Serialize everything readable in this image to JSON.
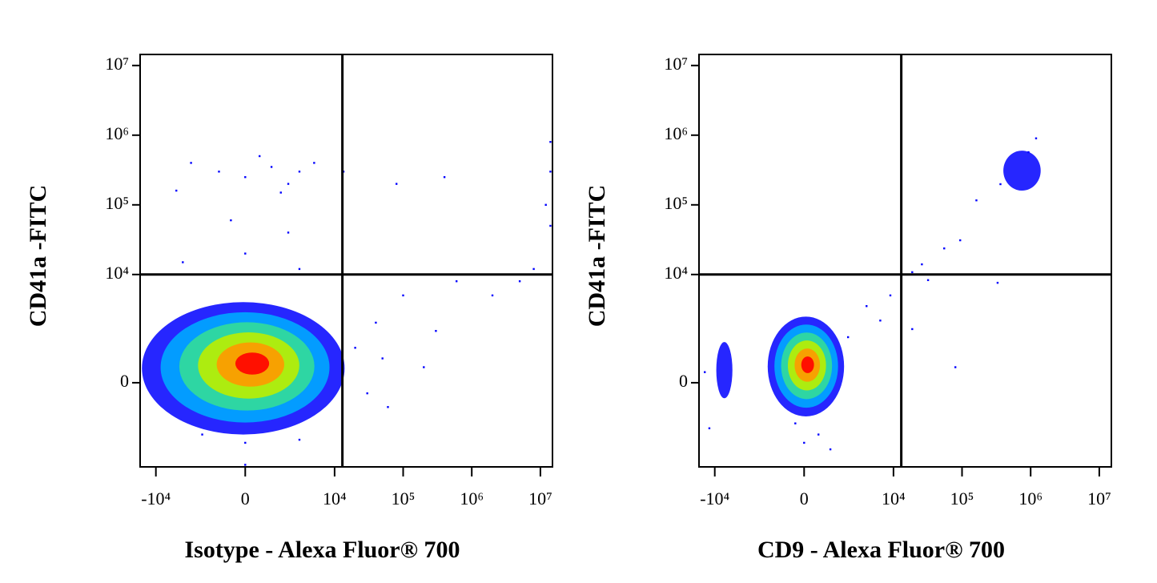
{
  "chart_data": [
    {
      "type": "scatter",
      "x_label": "Isotype - Alexa Fluor® 700",
      "y_label": "CD41a -FITC",
      "scale": "biexponential",
      "xlim": [
        -17000,
        15000000
      ],
      "ylim": [
        -4500,
        14400000
      ],
      "xticks": [
        {
          "value": -10000,
          "label": "-10⁴"
        },
        0,
        {
          "value": 10000,
          "label": "10⁴"
        },
        {
          "value": 100000,
          "label": "10⁵"
        },
        {
          "value": 1000000,
          "label": "10⁶"
        },
        {
          "value": 10000000,
          "label": "10⁷"
        }
      ],
      "yticks": [
        0,
        {
          "value": 10000,
          "label": "10⁴"
        },
        {
          "value": 100000,
          "label": "10⁵"
        },
        {
          "value": 1000000,
          "label": "10⁶"
        },
        {
          "value": 10000000,
          "label": "10⁷"
        }
      ],
      "quadrant": {
        "x": 13000,
        "y": 10000
      },
      "density_colors": [
        "#0000ff",
        "#00aaff",
        "#33dd99",
        "#bbee00",
        "#ff9900",
        "#ff0000"
      ],
      "populations": [
        {
          "x_range": [
            -16000,
            14000
          ],
          "y_range": [
            -1500,
            4000
          ],
          "center": [
            300,
            400
          ],
          "levels": 6
        }
      ],
      "color": "#0000ff",
      "x": [
        -3000,
        -1000,
        0,
        1000,
        2000,
        3000,
        5000,
        -5000,
        500,
        1500,
        -500,
        2000,
        0,
        -4000,
        3000,
        20000,
        40000,
        100000,
        300000,
        600000,
        2000000,
        5000000,
        8000000,
        12000000,
        14000000,
        14000000,
        14000000,
        13500,
        80000,
        400000,
        30000,
        50000,
        60000,
        200000,
        0,
        -2000,
        3000,
        0
      ],
      "y": [
        400000,
        300000,
        250000,
        350000,
        200000,
        300000,
        400000,
        160000,
        500000,
        150000,
        60000,
        40000,
        20000,
        15000,
        12000,
        800,
        2000,
        5000,
        1500,
        8000,
        5000,
        8000,
        12000,
        100000,
        50000,
        300000,
        800000,
        300000,
        200000,
        250000,
        -200,
        500,
        -500,
        300,
        -2000,
        -1500,
        -1800,
        -4200
      ]
    },
    {
      "type": "scatter",
      "x_label": "CD9 - Alexa Fluor® 700",
      "y_label": "CD41a -FITC",
      "scale": "biexponential",
      "xlim": [
        -17000,
        15000000
      ],
      "ylim": [
        -4500,
        14400000
      ],
      "xticks": [
        {
          "value": -10000,
          "label": "-10⁴"
        },
        0,
        {
          "value": 10000,
          "label": "10⁴"
        },
        {
          "value": 100000,
          "label": "10⁵"
        },
        {
          "value": 1000000,
          "label": "10⁶"
        },
        {
          "value": 10000000,
          "label": "10⁷"
        }
      ],
      "yticks": [
        0,
        {
          "value": 10000,
          "label": "10⁴"
        },
        {
          "value": 100000,
          "label": "10⁵"
        },
        {
          "value": 1000000,
          "label": "10⁶"
        },
        {
          "value": 10000000,
          "label": "10⁷"
        }
      ],
      "quadrant": {
        "x": 13000,
        "y": 10000
      },
      "density_colors": [
        "#0000ff",
        "#00aaff",
        "#33dd99",
        "#bbee00",
        "#ff9900",
        "#ff0000"
      ],
      "populations": [
        {
          "x_range": [
            -1550,
            1780
          ],
          "y_range": [
            -760,
            2460
          ],
          "center": [
            130,
            360
          ],
          "levels": 6
        },
        {
          "x_range": [
            -9500,
            -5500
          ],
          "y_range": [
            -300,
            1000
          ],
          "center": [
            -7300,
            300
          ],
          "levels": 1
        },
        {
          "x_range": [
            400000,
            1400000
          ],
          "y_range": [
            160000,
            600000
          ],
          "center": [
            710000,
            336000
          ],
          "levels": 1
        }
      ],
      "color": "#0000ff",
      "x": [
        6400,
        55000,
        162000,
        363000,
        2070,
        94000,
        32000,
        330000,
        80000,
        18800,
        18800,
        931000,
        0,
        500,
        -300,
        1000,
        -14000,
        -12000,
        4000,
        9000,
        26000,
        1200000
      ],
      "y": [
        2150,
        23700,
        116000,
        198000,
        1200,
        31000,
        8300,
        7600,
        300,
        1600,
        10800,
        570000,
        -2000,
        -1500,
        -1000,
        -2500,
        200,
        -1200,
        3500,
        5000,
        14000,
        900000
      ]
    }
  ]
}
